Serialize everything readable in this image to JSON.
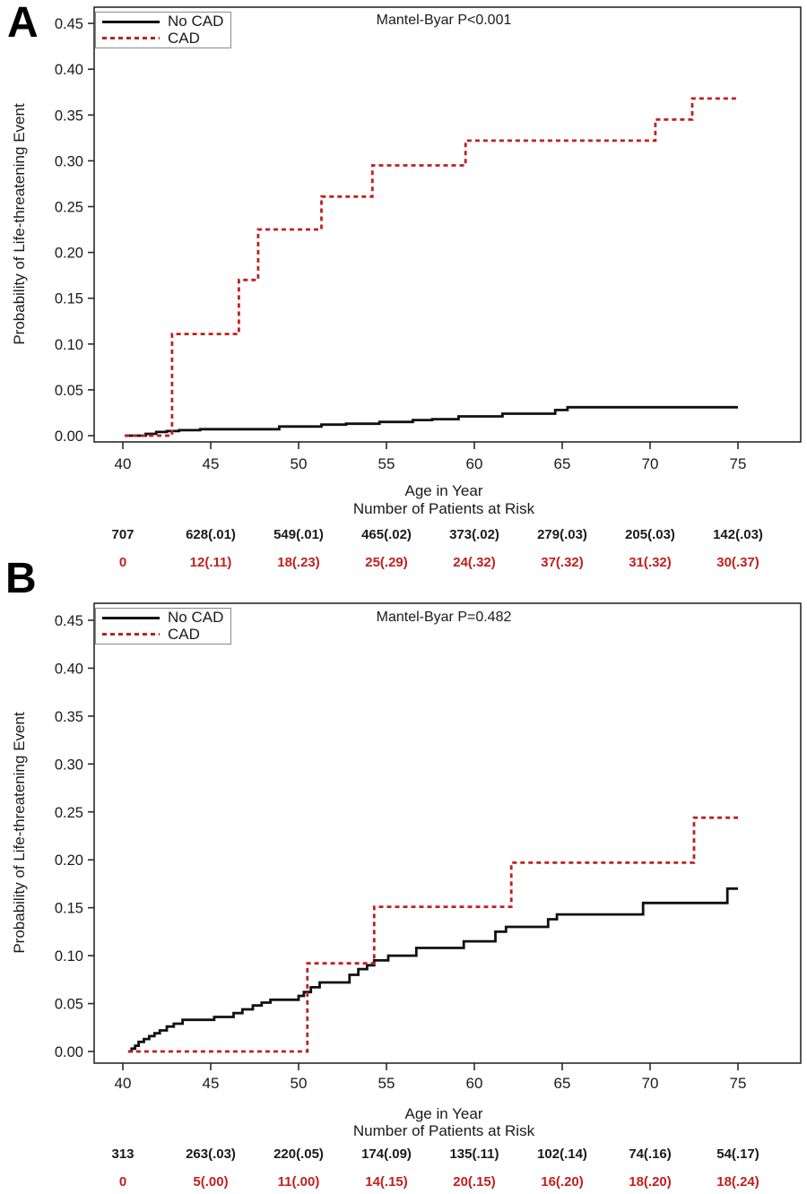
{
  "figure": {
    "panels": [
      {
        "label": "A"
      },
      {
        "label": "B"
      }
    ]
  },
  "colors": {
    "cad_red": "#c21f1f",
    "no_cad_black": "#111111",
    "risk_black": "#1a1a1a",
    "risk_red": "#c21f1f"
  },
  "chart_data": [
    {
      "type": "line",
      "step": true,
      "title": "",
      "annotation": "Mantel-Byar P<0.001",
      "xlabel": "Age in Year",
      "ylabel": "Probability of Life-threatening Event",
      "xlim": [
        38.4,
        78.6
      ],
      "ylim": [
        0,
        0.467
      ],
      "grid": false,
      "legend_position": "top-left",
      "x_ticks": [
        40,
        45,
        50,
        55,
        60,
        65,
        70,
        75
      ],
      "y_ticks": [
        0.0,
        0.05,
        0.1,
        0.15,
        0.2,
        0.25,
        0.3,
        0.35,
        0.4,
        0.45
      ],
      "series": [
        {
          "name": "No CAD",
          "color": "#111111",
          "dashed": false,
          "points": [
            [
              40.1,
              0
            ],
            [
              41.3,
              0.002
            ],
            [
              41.9,
              0.004
            ],
            [
              42.5,
              0.005
            ],
            [
              43.2,
              0.006
            ],
            [
              44.4,
              0.007
            ],
            [
              48.9,
              0.01
            ],
            [
              51.3,
              0.012
            ],
            [
              52.7,
              0.013
            ],
            [
              54.6,
              0.015
            ],
            [
              56.5,
              0.017
            ],
            [
              57.6,
              0.018
            ],
            [
              59.1,
              0.021
            ],
            [
              61.6,
              0.024
            ],
            [
              64.6,
              0.028
            ],
            [
              65.3,
              0.031
            ],
            [
              75,
              0.031
            ]
          ]
        },
        {
          "name": "CAD",
          "color": "#c21f1f",
          "dashed": true,
          "points": [
            [
              40.1,
              0
            ],
            [
              42.8,
              0.111
            ],
            [
              46.6,
              0.17
            ],
            [
              47.7,
              0.225
            ],
            [
              51.3,
              0.261
            ],
            [
              54.2,
              0.295
            ],
            [
              59.5,
              0.322
            ],
            [
              70.3,
              0.345
            ],
            [
              72.4,
              0.368
            ],
            [
              75,
              0.368
            ]
          ]
        }
      ],
      "risk_table": {
        "title": "Number of Patients at Risk",
        "ages": [
          40,
          45,
          50,
          55,
          60,
          65,
          70,
          75
        ],
        "rows": [
          {
            "name": "No CAD",
            "color": "#1a1a1a",
            "values": [
              "707",
              "628(.01)",
              "549(.01)",
              "465(.02)",
              "373(.02)",
              "279(.03)",
              "205(.03)",
              "142(.03)"
            ]
          },
          {
            "name": "CAD",
            "color": "#c21f1f",
            "values": [
              "0",
              "12(.11)",
              "18(.23)",
              "25(.29)",
              "24(.32)",
              "37(.32)",
              "31(.32)",
              "30(.37)"
            ]
          }
        ]
      }
    },
    {
      "type": "line",
      "step": true,
      "title": "",
      "annotation": "Mantel-Byar P=0.482",
      "xlabel": "Age in Year",
      "ylabel": "Probability of Life-threatening Event",
      "xlim": [
        38.4,
        78.6
      ],
      "ylim": [
        0,
        0.467
      ],
      "grid": false,
      "legend_position": "top-left",
      "x_ticks": [
        40,
        45,
        50,
        55,
        60,
        65,
        70,
        75
      ],
      "y_ticks": [
        0.0,
        0.05,
        0.1,
        0.15,
        0.2,
        0.25,
        0.3,
        0.35,
        0.4,
        0.45
      ],
      "series": [
        {
          "name": "No CAD",
          "color": "#111111",
          "dashed": false,
          "points": [
            [
              40.3,
              0
            ],
            [
              40.5,
              0.003
            ],
            [
              40.7,
              0.006
            ],
            [
              40.9,
              0.01
            ],
            [
              41.2,
              0.013
            ],
            [
              41.5,
              0.016
            ],
            [
              41.8,
              0.019
            ],
            [
              42.1,
              0.022
            ],
            [
              42.5,
              0.026
            ],
            [
              42.9,
              0.029
            ],
            [
              43.4,
              0.033
            ],
            [
              45.2,
              0.036
            ],
            [
              46.3,
              0.04
            ],
            [
              46.8,
              0.044
            ],
            [
              47.4,
              0.048
            ],
            [
              47.9,
              0.051
            ],
            [
              48.4,
              0.054
            ],
            [
              50.0,
              0.058
            ],
            [
              50.3,
              0.062
            ],
            [
              50.7,
              0.067
            ],
            [
              51.2,
              0.072
            ],
            [
              52.9,
              0.08
            ],
            [
              53.4,
              0.086
            ],
            [
              53.9,
              0.09
            ],
            [
              54.3,
              0.095
            ],
            [
              55.1,
              0.1
            ],
            [
              56.7,
              0.108
            ],
            [
              59.4,
              0.115
            ],
            [
              61.2,
              0.125
            ],
            [
              61.8,
              0.13
            ],
            [
              64.2,
              0.138
            ],
            [
              64.7,
              0.143
            ],
            [
              69.6,
              0.155
            ],
            [
              74.4,
              0.17
            ],
            [
              75,
              0.17
            ]
          ]
        },
        {
          "name": "CAD",
          "color": "#c21f1f",
          "dashed": true,
          "points": [
            [
              40.3,
              0
            ],
            [
              50.5,
              0.092
            ],
            [
              54.3,
              0.151
            ],
            [
              62.1,
              0.197
            ],
            [
              72.5,
              0.244
            ],
            [
              75,
              0.244
            ]
          ]
        }
      ],
      "risk_table": {
        "title": "Number of Patients at Risk",
        "ages": [
          40,
          45,
          50,
          55,
          60,
          65,
          70,
          75
        ],
        "rows": [
          {
            "name": "No CAD",
            "color": "#1a1a1a",
            "values": [
              "313",
              "263(.03)",
              "220(.05)",
              "174(.09)",
              "135(.11)",
              "102(.14)",
              "74(.16)",
              "54(.17)"
            ]
          },
          {
            "name": "CAD",
            "color": "#c21f1f",
            "values": [
              "0",
              "5(.00)",
              "11(.00)",
              "14(.15)",
              "20(.15)",
              "16(.20)",
              "18(.20)",
              "18(.24)"
            ]
          }
        ]
      }
    }
  ]
}
